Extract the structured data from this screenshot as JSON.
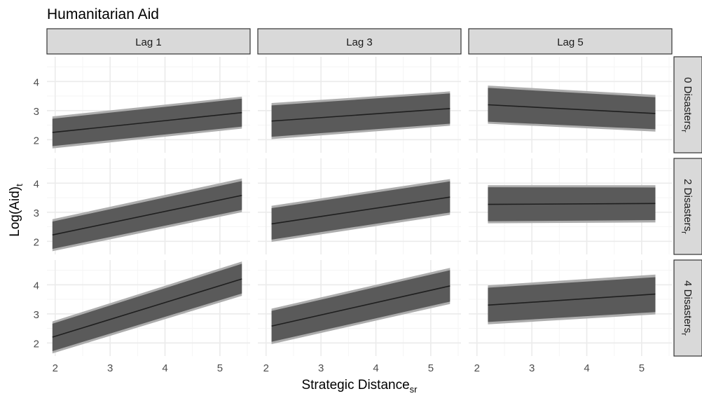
{
  "chart_data": {
    "type": "line",
    "title": "Humanitarian Aid",
    "xlabel": {
      "main": "Strategic Distance",
      "sub": "sr"
    },
    "ylabel": {
      "main": "Log(Aid)",
      "sub": "t"
    },
    "col_strips": [
      "Lag 1",
      "Lag 3",
      "Lag 5"
    ],
    "row_strips": [
      {
        "main": "0 Disasters",
        "sub": "r"
      },
      {
        "main": "2 Disasters",
        "sub": "r"
      },
      {
        "main": "4 Disasters",
        "sub": "r"
      }
    ],
    "x_ticks": [
      "2",
      "3",
      "4",
      "5"
    ],
    "y_ticks": [
      "2",
      "3",
      "4"
    ],
    "xlim": [
      1.85,
      5.55
    ],
    "ylim": [
      1.55,
      4.85
    ],
    "grid": true,
    "colors": {
      "line": "#1f1f1f",
      "band_inner": "#5a5a5a",
      "band_outer": "#adadad",
      "strip_fill": "#d9d9d9",
      "grid_major": "#ebebeb",
      "grid_minor": "#f5f5f5"
    },
    "panels": [
      {
        "row": 0,
        "col": 0,
        "x": [
          1.95,
          5.4
        ],
        "fit": [
          2.25,
          2.93
        ],
        "inner_lo": [
          1.78,
          2.45
        ],
        "inner_hi": [
          2.72,
          3.41
        ],
        "outer_lo": [
          1.7,
          2.38
        ],
        "outer_hi": [
          2.8,
          3.48
        ]
      },
      {
        "row": 0,
        "col": 1,
        "x": [
          2.1,
          5.35
        ],
        "fit": [
          2.64,
          3.07
        ],
        "inner_lo": [
          2.1,
          2.55
        ],
        "inner_hi": [
          3.18,
          3.59
        ],
        "outer_lo": [
          2.02,
          2.48
        ],
        "outer_hi": [
          3.26,
          3.66
        ]
      },
      {
        "row": 0,
        "col": 2,
        "x": [
          2.2,
          5.25
        ],
        "fit": [
          3.2,
          2.9
        ],
        "inner_lo": [
          2.62,
          2.36
        ],
        "inner_hi": [
          3.78,
          3.46
        ],
        "outer_lo": [
          2.55,
          2.28
        ],
        "outer_hi": [
          3.86,
          3.54
        ]
      },
      {
        "row": 1,
        "col": 0,
        "x": [
          1.95,
          5.4
        ],
        "fit": [
          2.22,
          3.58
        ],
        "inner_lo": [
          1.74,
          3.08
        ],
        "inner_hi": [
          2.68,
          4.07
        ],
        "outer_lo": [
          1.66,
          3.0
        ],
        "outer_hi": [
          2.76,
          4.16
        ]
      },
      {
        "row": 1,
        "col": 1,
        "x": [
          2.1,
          5.35
        ],
        "fit": [
          2.6,
          3.52
        ],
        "inner_lo": [
          2.06,
          2.99
        ],
        "inner_hi": [
          3.14,
          4.06
        ],
        "outer_lo": [
          1.98,
          2.91
        ],
        "outer_hi": [
          3.22,
          4.14
        ]
      },
      {
        "row": 1,
        "col": 2,
        "x": [
          2.2,
          5.25
        ],
        "fit": [
          3.27,
          3.3
        ],
        "inner_lo": [
          2.69,
          2.73
        ],
        "inner_hi": [
          3.86,
          3.85
        ],
        "outer_lo": [
          2.62,
          2.65
        ],
        "outer_hi": [
          3.93,
          3.93
        ]
      },
      {
        "row": 2,
        "col": 0,
        "x": [
          1.95,
          5.4
        ],
        "fit": [
          2.2,
          4.2
        ],
        "inner_lo": [
          1.72,
          3.7
        ],
        "inner_hi": [
          2.66,
          4.72
        ],
        "outer_lo": [
          1.64,
          3.62
        ],
        "outer_hi": [
          2.74,
          4.8
        ]
      },
      {
        "row": 2,
        "col": 1,
        "x": [
          2.1,
          5.35
        ],
        "fit": [
          2.58,
          3.96
        ],
        "inner_lo": [
          2.04,
          3.42
        ],
        "inner_hi": [
          3.1,
          4.5
        ],
        "outer_lo": [
          1.96,
          3.34
        ],
        "outer_hi": [
          3.18,
          4.58
        ]
      },
      {
        "row": 2,
        "col": 2,
        "x": [
          2.2,
          5.25
        ],
        "fit": [
          3.3,
          3.68
        ],
        "inner_lo": [
          2.72,
          3.06
        ],
        "inner_hi": [
          3.9,
          4.26
        ],
        "outer_lo": [
          2.64,
          2.98
        ],
        "outer_hi": [
          3.98,
          4.35
        ]
      }
    ]
  }
}
